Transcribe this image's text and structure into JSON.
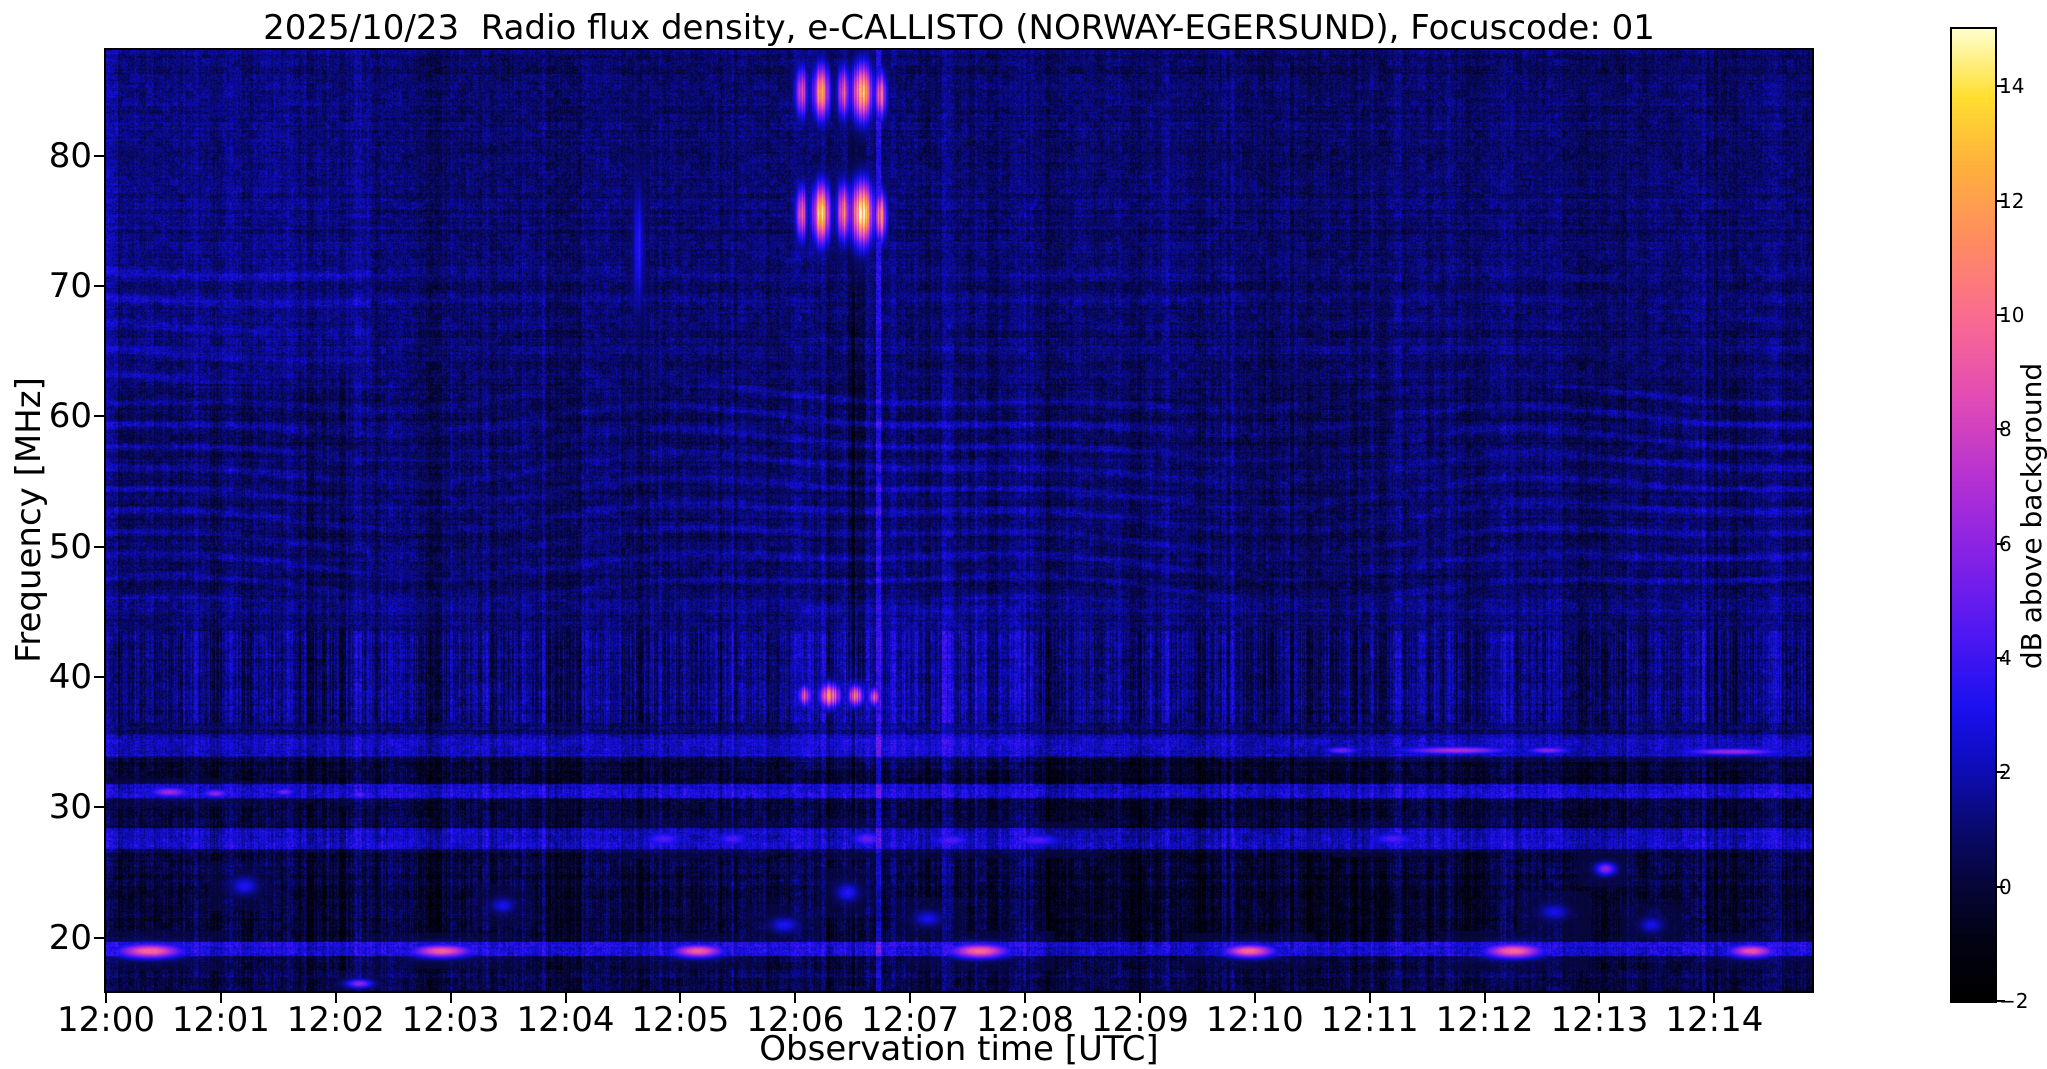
{
  "figure": {
    "background": "#ffffff"
  },
  "chart_data": {
    "type": "heatmap",
    "title": "2025/10/23  Radio flux density, e-CALLISTO (NORWAY-EGERSUND), Focuscode: 01",
    "xlabel": "Observation time [UTC]",
    "ylabel": "Frequency [MHz]",
    "grid": false,
    "legend": false,
    "x_range_minutes": [
      0,
      14.85
    ],
    "y_range_mhz": [
      15.9,
      88.1
    ],
    "x_ticks": [
      {
        "v": 0,
        "label": "12:00"
      },
      {
        "v": 1,
        "label": "12:01"
      },
      {
        "v": 2,
        "label": "12:02"
      },
      {
        "v": 3,
        "label": "12:03"
      },
      {
        "v": 4,
        "label": "12:04"
      },
      {
        "v": 5,
        "label": "12:05"
      },
      {
        "v": 6,
        "label": "12:06"
      },
      {
        "v": 7,
        "label": "12:07"
      },
      {
        "v": 8,
        "label": "12:08"
      },
      {
        "v": 9,
        "label": "12:09"
      },
      {
        "v": 10,
        "label": "12:10"
      },
      {
        "v": 11,
        "label": "12:11"
      },
      {
        "v": 12,
        "label": "12:12"
      },
      {
        "v": 13,
        "label": "12:13"
      },
      {
        "v": 14,
        "label": "12:14"
      }
    ],
    "y_ticks": [
      {
        "v": 20,
        "label": "20"
      },
      {
        "v": 30,
        "label": "30"
      },
      {
        "v": 40,
        "label": "40"
      },
      {
        "v": 50,
        "label": "50"
      },
      {
        "v": 60,
        "label": "60"
      },
      {
        "v": 70,
        "label": "70"
      },
      {
        "v": 80,
        "label": "80"
      }
    ],
    "colorbar": {
      "label": "dB above background",
      "range": [
        -2,
        15
      ],
      "ticks": [
        {
          "v": -2,
          "label": "−2"
        },
        {
          "v": 0,
          "label": "0"
        },
        {
          "v": 2,
          "label": "2"
        },
        {
          "v": 4,
          "label": "4"
        },
        {
          "v": 6,
          "label": "6"
        },
        {
          "v": 8,
          "label": "8"
        },
        {
          "v": 10,
          "label": "10"
        },
        {
          "v": 12,
          "label": "12"
        },
        {
          "v": 14,
          "label": "14"
        }
      ],
      "colormap": "gnuplot2-like (black-blue-magenta-orange-yellow-white)",
      "stops": [
        [
          0.0,
          "#000000"
        ],
        [
          0.06,
          "#020213"
        ],
        [
          0.12,
          "#06063a"
        ],
        [
          0.18,
          "#0a0a72"
        ],
        [
          0.24,
          "#0d0dbb"
        ],
        [
          0.3,
          "#1a10f0"
        ],
        [
          0.38,
          "#5218f2"
        ],
        [
          0.46,
          "#8822e6"
        ],
        [
          0.54,
          "#b832d2"
        ],
        [
          0.62,
          "#e24cb4"
        ],
        [
          0.7,
          "#f96a92"
        ],
        [
          0.78,
          "#ff8b62"
        ],
        [
          0.86,
          "#ffb13c"
        ],
        [
          0.93,
          "#ffdf30"
        ],
        [
          1.0,
          "#ffffcf"
        ]
      ]
    },
    "background_level_db": 0.8,
    "features": {
      "wave_band": {
        "f0": 46.0,
        "f1": 62.5,
        "spacing_mhz": 1.8
      },
      "wave_band_upper": {
        "f0": 62.5,
        "f1": 72.5,
        "strong_before_minute": 2.3
      },
      "bands": [
        {
          "f0": 15.9,
          "f1": 18.5,
          "add": -0.55,
          "stripe": 1.4
        },
        {
          "f0": 18.55,
          "f1": 19.65,
          "add": 2.0,
          "stripe": 1.2
        },
        {
          "f0": 19.65,
          "f1": 26.5,
          "add": -0.75,
          "stripe": 1.8
        },
        {
          "f0": 26.8,
          "f1": 28.4,
          "add": 1.5,
          "stripe": 1.6
        },
        {
          "f0": 28.4,
          "f1": 30.6,
          "add": -0.8,
          "stripe": 1.5
        },
        {
          "f0": 30.7,
          "f1": 31.8,
          "add": 1.7,
          "stripe": 1.4
        },
        {
          "f0": 31.8,
          "f1": 33.8,
          "add": -0.95,
          "stripe": 1.5
        },
        {
          "f0": 33.9,
          "f1": 35.6,
          "add": 1.2,
          "stripe": 1.2
        },
        {
          "f0": 36.5,
          "f1": 43.5,
          "add": 0.35,
          "stripe": 2.4
        },
        {
          "f0": 44.0,
          "f1": 46.0,
          "add": 0.25,
          "stripe": 1.2
        },
        {
          "f0": 46.0,
          "f1": 62.5,
          "add": 0.1,
          "stripe": 1.1
        },
        {
          "f0": 62.5,
          "f1": 73.0,
          "add": 0.05,
          "stripe": 0.9
        },
        {
          "f0": 73.0,
          "f1": 88.1,
          "add": 0.0,
          "stripe": 0.8
        }
      ],
      "patches": [
        {
          "t0": 0.0,
          "t1": 2.3,
          "f0": 62.0,
          "f1": 88.1,
          "add": 0.35
        },
        {
          "t0": 0.0,
          "t1": 0.1,
          "f0": 15.9,
          "f1": 88.1,
          "add": 0.8
        },
        {
          "t0": 6.05,
          "t1": 7.95,
          "f0": 33.0,
          "f1": 45.5,
          "add": 0.5
        },
        {
          "t0": 6.46,
          "t1": 6.6,
          "f0": 40.0,
          "f1": 88.1,
          "add": -0.7
        },
        {
          "t0": 8.2,
          "t1": 9.7,
          "f0": 18.5,
          "f1": 33.8,
          "add": -0.45
        },
        {
          "t0": 10.4,
          "t1": 12.1,
          "f0": 19.7,
          "f1": 26.6,
          "add": -0.35
        }
      ],
      "vlines": [
        {
          "t": 6.72,
          "dt": 0.018,
          "add": 2.3
        },
        {
          "t": 6.5,
          "dt": 0.012,
          "add": -1.2
        }
      ],
      "bursts": [
        {
          "t": 6.05,
          "dt": 0.055,
          "f": 84.9,
          "df": 1.9,
          "level": 8.5
        },
        {
          "t": 6.22,
          "dt": 0.075,
          "f": 84.9,
          "df": 2.0,
          "level": 10.5
        },
        {
          "t": 6.42,
          "dt": 0.055,
          "f": 84.9,
          "df": 1.9,
          "level": 9.5
        },
        {
          "t": 6.58,
          "dt": 0.09,
          "f": 84.9,
          "df": 2.1,
          "level": 12.5
        },
        {
          "t": 6.74,
          "dt": 0.05,
          "f": 84.7,
          "df": 1.7,
          "level": 9.0
        },
        {
          "t": 6.05,
          "dt": 0.05,
          "f": 75.6,
          "df": 2.0,
          "level": 9.5
        },
        {
          "t": 6.22,
          "dt": 0.08,
          "f": 75.6,
          "df": 2.2,
          "level": 12.0
        },
        {
          "t": 6.42,
          "dt": 0.06,
          "f": 75.7,
          "df": 2.1,
          "level": 11.0
        },
        {
          "t": 6.58,
          "dt": 0.095,
          "f": 75.6,
          "df": 2.3,
          "level": 14.5
        },
        {
          "t": 6.74,
          "dt": 0.05,
          "f": 75.4,
          "df": 1.8,
          "level": 10.0
        },
        {
          "t": 6.08,
          "dt": 0.06,
          "f": 38.6,
          "df": 0.8,
          "level": 8.5
        },
        {
          "t": 6.3,
          "dt": 0.09,
          "f": 38.6,
          "df": 0.9,
          "level": 10.5
        },
        {
          "t": 6.52,
          "dt": 0.07,
          "f": 38.6,
          "df": 0.8,
          "level": 9.5
        },
        {
          "t": 6.68,
          "dt": 0.05,
          "f": 38.5,
          "df": 0.7,
          "level": 8.5
        },
        {
          "t": 0.38,
          "dt": 0.28,
          "f": 19.0,
          "df": 0.55,
          "level": 10.0
        },
        {
          "t": 2.92,
          "dt": 0.26,
          "f": 19.0,
          "df": 0.5,
          "level": 9.5
        },
        {
          "t": 5.15,
          "dt": 0.22,
          "f": 19.0,
          "df": 0.5,
          "level": 9.5
        },
        {
          "t": 7.6,
          "dt": 0.25,
          "f": 19.0,
          "df": 0.55,
          "level": 10.0
        },
        {
          "t": 9.95,
          "dt": 0.22,
          "f": 19.0,
          "df": 0.5,
          "level": 10.0
        },
        {
          "t": 12.25,
          "dt": 0.25,
          "f": 19.0,
          "df": 0.55,
          "level": 10.0
        },
        {
          "t": 14.32,
          "dt": 0.2,
          "f": 19.0,
          "df": 0.5,
          "level": 9.0
        },
        {
          "t": 11.75,
          "dt": 0.5,
          "f": 34.4,
          "df": 0.3,
          "level": 7.0
        },
        {
          "t": 12.55,
          "dt": 0.2,
          "f": 34.4,
          "df": 0.28,
          "level": 6.0
        },
        {
          "t": 14.15,
          "dt": 0.45,
          "f": 34.3,
          "df": 0.28,
          "level": 6.5
        },
        {
          "t": 10.75,
          "dt": 0.15,
          "f": 34.4,
          "df": 0.3,
          "level": 5.5
        },
        {
          "t": 0.55,
          "dt": 0.18,
          "f": 31.2,
          "df": 0.4,
          "level": 6.5
        },
        {
          "t": 0.95,
          "dt": 0.12,
          "f": 31.1,
          "df": 0.35,
          "level": 6.0
        },
        {
          "t": 1.55,
          "dt": 0.1,
          "f": 31.2,
          "df": 0.3,
          "level": 5.5
        },
        {
          "t": 2.2,
          "dt": 0.08,
          "f": 31.0,
          "df": 0.3,
          "level": 5.0
        },
        {
          "t": 13.05,
          "dt": 0.09,
          "f": 25.3,
          "df": 0.5,
          "level": 6.0
        },
        {
          "t": 2.2,
          "dt": 0.12,
          "f": 16.5,
          "df": 0.35,
          "level": 6.0
        },
        {
          "t": 4.63,
          "dt": 0.05,
          "f": 73.0,
          "df": 5.0,
          "level": 3.2
        },
        {
          "t": 4.85,
          "dt": 0.18,
          "f": 27.6,
          "df": 0.55,
          "level": 4.5
        },
        {
          "t": 5.45,
          "dt": 0.15,
          "f": 27.6,
          "df": 0.5,
          "level": 4.5
        },
        {
          "t": 6.62,
          "dt": 0.14,
          "f": 27.6,
          "df": 0.6,
          "level": 5.0
        },
        {
          "t": 7.35,
          "dt": 0.18,
          "f": 27.5,
          "df": 0.5,
          "level": 4.5
        },
        {
          "t": 8.1,
          "dt": 0.22,
          "f": 27.5,
          "df": 0.5,
          "level": 4.5
        },
        {
          "t": 11.2,
          "dt": 0.2,
          "f": 27.6,
          "df": 0.5,
          "level": 4.5
        },
        {
          "t": 1.2,
          "dt": 0.12,
          "f": 24.0,
          "df": 0.7,
          "level": 3.2
        },
        {
          "t": 3.45,
          "dt": 0.1,
          "f": 22.5,
          "df": 0.6,
          "level": 3.0
        },
        {
          "t": 5.9,
          "dt": 0.12,
          "f": 21.0,
          "df": 0.6,
          "level": 3.2
        },
        {
          "t": 6.45,
          "dt": 0.1,
          "f": 23.5,
          "df": 0.7,
          "level": 3.4
        },
        {
          "t": 7.15,
          "dt": 0.12,
          "f": 21.5,
          "df": 0.6,
          "level": 3.0
        },
        {
          "t": 12.6,
          "dt": 0.12,
          "f": 22.0,
          "df": 0.6,
          "level": 3.0
        },
        {
          "t": 13.45,
          "dt": 0.1,
          "f": 21.0,
          "df": 0.6,
          "level": 3.0
        }
      ]
    }
  }
}
